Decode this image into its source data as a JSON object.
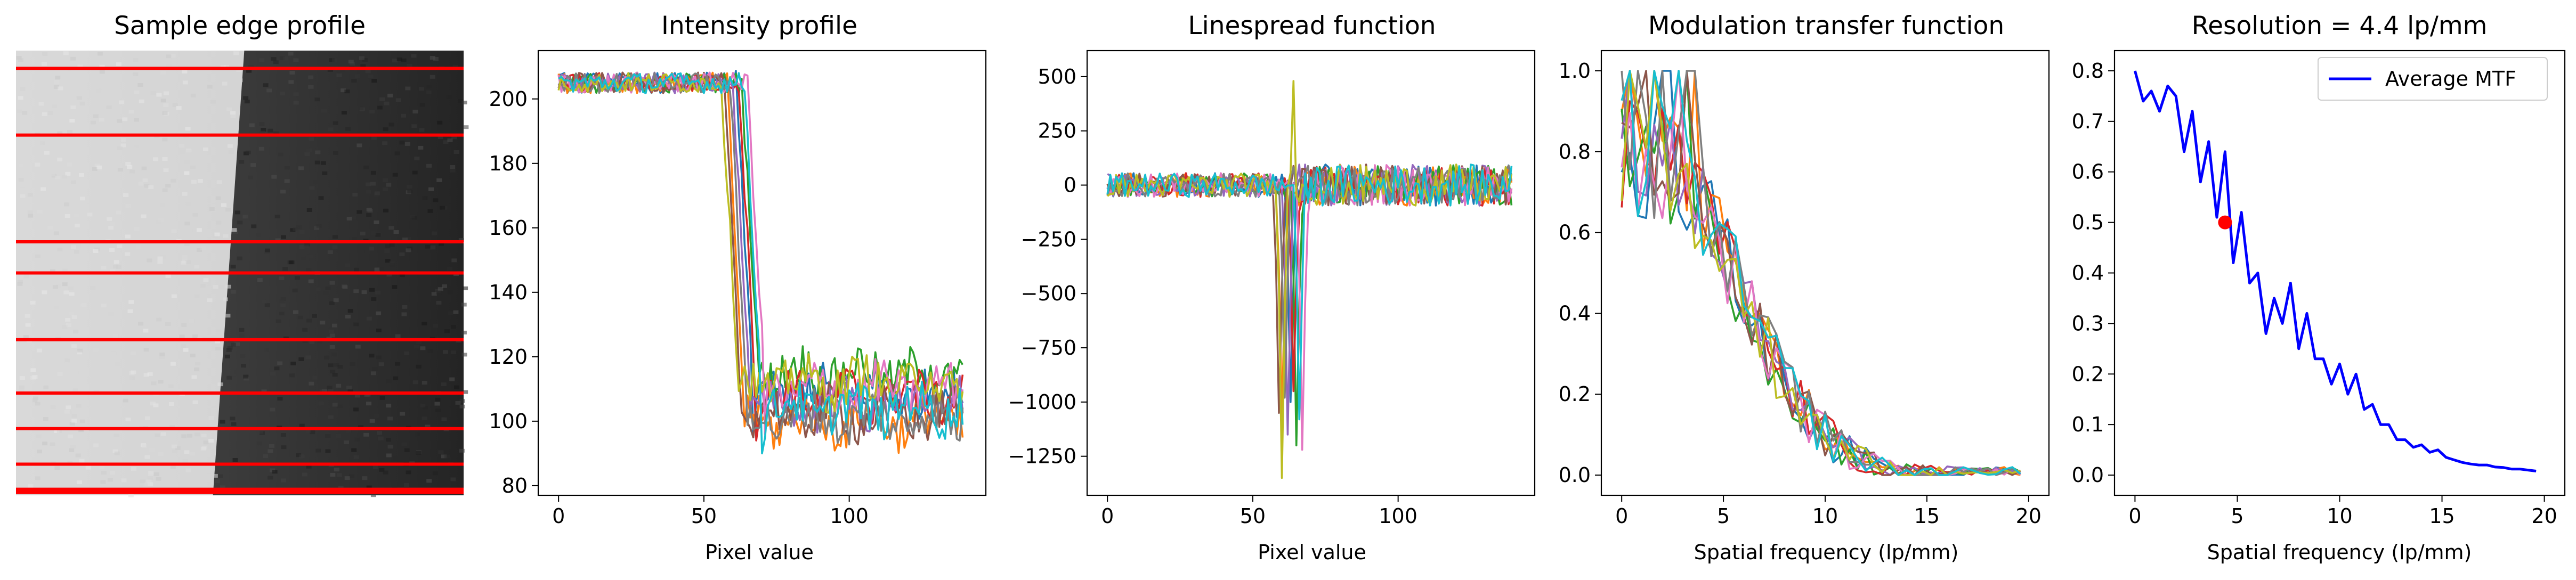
{
  "figure": {
    "background": "#ffffff",
    "line_colors": [
      "#1f77b4",
      "#ff7f0e",
      "#2ca02c",
      "#d62728",
      "#9467bd",
      "#8c564b",
      "#e377c2",
      "#7f7f7f",
      "#bcbd22",
      "#17becf"
    ],
    "profile_line_color": "#ff0000",
    "mtf_color": "#0000ff",
    "marker_color": "#ff0000"
  },
  "chart_data": [
    {
      "type": "image",
      "title": "Sample edge profile",
      "description_free": true,
      "edge_profile": {
        "left_gray": 0.85,
        "right_gray": 0.2,
        "profile_rows": [
          0.04,
          0.19,
          0.43,
          0.5,
          0.65,
          0.77,
          0.85,
          0.93,
          0.99
        ]
      }
    },
    {
      "type": "line",
      "title": "Intensity profile",
      "xlabel": "Pixel value",
      "ylabel": "",
      "xlim": [
        -7,
        147
      ],
      "ylim": [
        77,
        215
      ],
      "xticks": [
        0,
        50,
        100
      ],
      "yticks": [
        80,
        100,
        120,
        140,
        160,
        180,
        200
      ],
      "n_series": 10,
      "high_level": 205,
      "low_level": 106,
      "edge_x": [
        64,
        61,
        66,
        65,
        63,
        60,
        68,
        62,
        59,
        67
      ],
      "low_offset": [
        3,
        -6,
        9,
        2,
        -1,
        -4,
        4,
        -5,
        6,
        -2
      ],
      "x_max": 139
    },
    {
      "type": "line",
      "title": "Linespread function",
      "xlabel": "Pixel value",
      "ylabel": "",
      "xlim": [
        -7,
        147
      ],
      "ylim": [
        -1430,
        620
      ],
      "xticks": [
        0,
        50,
        100
      ],
      "yticks": [
        500,
        250,
        0,
        -250,
        -500,
        -750,
        -1000,
        -1250
      ],
      "n_series": 10,
      "dip_x": [
        63,
        60,
        65,
        64,
        62,
        59,
        67,
        61,
        60,
        66
      ],
      "dip_value": [
        -1000,
        -1100,
        -1200,
        -950,
        -1150,
        -1050,
        -1220,
        -980,
        -1350,
        -1080
      ],
      "x_max": 139
    },
    {
      "type": "line",
      "title": "Modulation transfer function",
      "xlabel": "Spatial frequency (lp/mm)",
      "ylabel": "",
      "xlim": [
        -1,
        21
      ],
      "ylim": [
        -0.05,
        1.05
      ],
      "xticks": [
        0,
        5,
        10,
        15,
        20
      ],
      "yticks": [
        0.0,
        0.2,
        0.4,
        0.6,
        0.8,
        1.0
      ],
      "n_series": 10,
      "x_max": 19.6,
      "n_points": 50
    },
    {
      "type": "line",
      "title": "Resolution = 4.4 lp/mm",
      "xlabel": "Spatial frequency (lp/mm)",
      "ylabel": "",
      "xlim": [
        -1,
        21
      ],
      "ylim": [
        -0.04,
        0.84
      ],
      "xticks": [
        0,
        5,
        10,
        15,
        20
      ],
      "yticks": [
        0.0,
        0.1,
        0.2,
        0.3,
        0.4,
        0.5,
        0.6,
        0.7,
        0.8
      ],
      "legend_position": "top-right",
      "series": [
        {
          "name": "Average MTF",
          "x": [
            0.0,
            0.4,
            0.8,
            1.2,
            1.6,
            2.0,
            2.4,
            2.8,
            3.2,
            3.6,
            4.0,
            4.4,
            4.8,
            5.2,
            5.6,
            6.0,
            6.4,
            6.8,
            7.2,
            7.6,
            8.0,
            8.4,
            8.8,
            9.2,
            9.6,
            10.0,
            10.4,
            10.8,
            11.2,
            11.6,
            12.0,
            12.4,
            12.8,
            13.2,
            13.6,
            14.0,
            14.4,
            14.8,
            15.2,
            15.6,
            16.0,
            16.4,
            16.8,
            17.2,
            17.6,
            18.0,
            18.4,
            18.8,
            19.2,
            19.6
          ],
          "y": [
            0.8,
            0.74,
            0.76,
            0.72,
            0.77,
            0.75,
            0.64,
            0.72,
            0.58,
            0.66,
            0.51,
            0.64,
            0.42,
            0.52,
            0.38,
            0.4,
            0.28,
            0.35,
            0.3,
            0.38,
            0.25,
            0.32,
            0.23,
            0.23,
            0.18,
            0.22,
            0.16,
            0.2,
            0.13,
            0.14,
            0.1,
            0.1,
            0.07,
            0.07,
            0.055,
            0.06,
            0.045,
            0.05,
            0.035,
            0.03,
            0.025,
            0.022,
            0.02,
            0.02,
            0.016,
            0.015,
            0.012,
            0.012,
            0.01,
            0.008
          ]
        }
      ],
      "marker": {
        "x": 4.4,
        "y": 0.5
      }
    }
  ]
}
